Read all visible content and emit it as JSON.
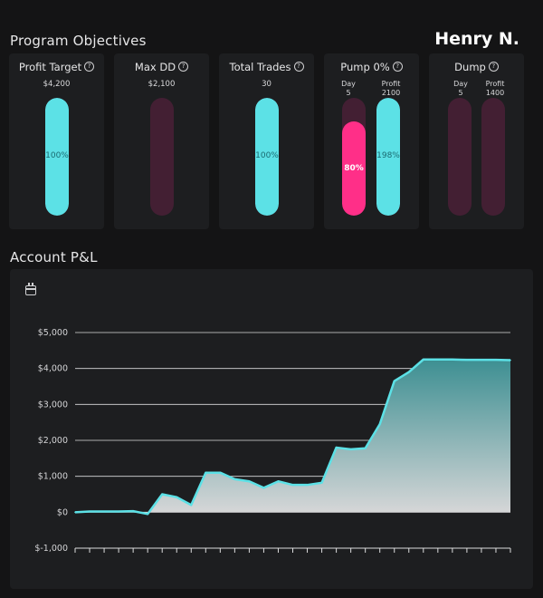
{
  "header": {
    "objectives_title": "Program Objectives",
    "user_name": "Henry N."
  },
  "objectives": [
    {
      "title": "Profit Target",
      "value": "$4,200",
      "bar": {
        "fill": 1.0,
        "label": "100%",
        "color": "#5ce1e6"
      }
    },
    {
      "title": "Max DD",
      "value": "$2,100",
      "bar": {
        "fill": 0.0,
        "label": "",
        "color": "#5ce1e6"
      }
    },
    {
      "title": "Total Trades",
      "value": "30",
      "bar": {
        "fill": 1.0,
        "label": "100%",
        "color": "#5ce1e6"
      }
    },
    {
      "title": "Pump 0%",
      "day_label": "Day",
      "day_value": "5",
      "profit_label": "Profit",
      "profit_value": "2100",
      "day_bar": {
        "fill": 0.8,
        "label": "80%",
        "color": "#ff2f88"
      },
      "profit_bar": {
        "fill": 1.0,
        "label": "198%",
        "color": "#5ce1e6"
      }
    },
    {
      "title": "Dump",
      "day_label": "Day",
      "day_value": "5",
      "profit_label": "Profit",
      "profit_value": "1400",
      "day_bar": {
        "fill": 0.0,
        "label": "",
        "color": "#5ce1e6"
      },
      "profit_bar": {
        "fill": 0.0,
        "label": "",
        "color": "#5ce1e6"
      }
    }
  ],
  "help_icon_glyph": "?",
  "pnl": {
    "title": "Account P&L",
    "calendar_icon": "calendar-icon"
  },
  "colors": {
    "accent": "#5ce1e6",
    "pink": "#ff2f88",
    "track": "#431f33"
  },
  "chart_data": {
    "type": "area",
    "title": "",
    "xlabel": "",
    "ylabel": "",
    "ylim": [
      -1000,
      5000
    ],
    "yticks": [
      -1000,
      0,
      1000,
      2000,
      3000,
      4000,
      5000
    ],
    "ytick_labels": [
      "$-1,000",
      "$0",
      "$1,000",
      "$2,000",
      "$3,000",
      "$4,000",
      "$5,000"
    ],
    "grid": true,
    "x": [
      0,
      1,
      2,
      3,
      4,
      5,
      6,
      7,
      8,
      9,
      10,
      11,
      12,
      13,
      14,
      15,
      16,
      17,
      18,
      19,
      20,
      21,
      22,
      23,
      24,
      25,
      26,
      27,
      28,
      29,
      30
    ],
    "series": [
      {
        "values": [
          0,
          20,
          20,
          20,
          30,
          -50,
          500,
          420,
          200,
          1100,
          1100,
          920,
          860,
          680,
          860,
          760,
          760,
          820,
          1800,
          1750,
          1780,
          2450,
          3650,
          3900,
          4250,
          4250,
          4250,
          4240,
          4240,
          4240,
          4230
        ]
      }
    ]
  }
}
